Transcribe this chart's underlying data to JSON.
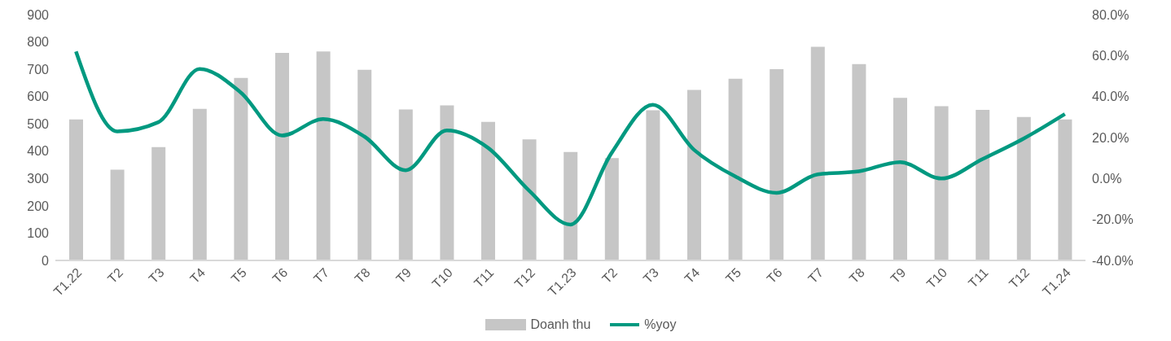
{
  "chart_data": {
    "type": "bar",
    "categories": [
      "T1.22",
      "T2",
      "T3",
      "T4",
      "T5",
      "T6",
      "T7",
      "T8",
      "T9",
      "T10",
      "T11",
      "T12",
      "T1.23",
      "T2",
      "T3",
      "T4",
      "T5",
      "T6",
      "T7",
      "T8",
      "T9",
      "T10",
      "T11",
      "T12",
      "T1.24"
    ],
    "series": [
      {
        "name": "Doanh thu",
        "color": "#c6c6c6",
        "values": [
          516,
          332,
          415,
          555,
          668,
          760,
          765,
          698,
          553,
          568,
          507,
          443,
          397,
          375,
          550,
          624,
          665,
          700,
          782,
          719,
          595,
          565,
          551,
          525,
          516
        ]
      },
      {
        "name": "%yoy",
        "type": "line",
        "axis": "y2",
        "color": "#009980",
        "values": [
          62,
          23,
          27.5,
          53.5,
          42,
          21,
          29,
          20.5,
          4,
          23.5,
          15,
          -6,
          -22.5,
          12.5,
          36,
          14,
          1,
          -7,
          2,
          3.5,
          8,
          0,
          9.5,
          19.5,
          31.5
        ]
      }
    ],
    "ylim": [
      0,
      900
    ],
    "yticks": [
      0,
      100,
      200,
      300,
      400,
      500,
      600,
      700,
      800,
      900
    ],
    "y2lim": [
      -40,
      80
    ],
    "y2ticks": [
      {
        "value": -40,
        "label": "-40.0%"
      },
      {
        "value": -20,
        "label": "-20.0%"
      },
      {
        "value": 0,
        "label": "0.0%"
      },
      {
        "value": 20,
        "label": "20.0%"
      },
      {
        "value": 40,
        "label": "40.0%"
      },
      {
        "value": 60,
        "label": "60.0%"
      },
      {
        "value": 80,
        "label": "80.0%"
      }
    ],
    "grid": false,
    "legend": "bottom",
    "marker": "none",
    "line_style": "solid"
  }
}
